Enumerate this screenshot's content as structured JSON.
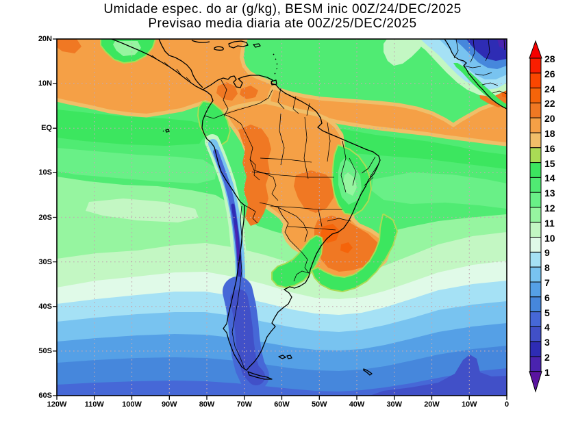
{
  "title": {
    "line1": "Umidade espec. do ar (g/kg), BESM inic 00Z/24/DEC/2025",
    "line2": "Previsao media diaria ate 00Z/25/DEC/2025"
  },
  "axes": {
    "lat_labels": [
      "20N",
      "10N",
      "EQ",
      "10S",
      "20S",
      "30S",
      "40S",
      "50S",
      "60S"
    ],
    "lon_labels": [
      "120W",
      "110W",
      "100W",
      "90W",
      "80W",
      "70W",
      "60W",
      "50W",
      "40W",
      "30W",
      "20W",
      "10W",
      "0"
    ]
  },
  "colorbar": {
    "boundary_values": [
      "28",
      "26",
      "24",
      "22",
      "20",
      "18",
      "16",
      "15",
      "14",
      "13",
      "12",
      "11",
      "10",
      "9",
      "8",
      "7",
      "6",
      "5",
      "4",
      "3",
      "2",
      "1"
    ],
    "bands_top_to_bottom": [
      "26-28",
      "24-26",
      "22-24",
      "20-22",
      "18-20",
      "16-18",
      "15-16",
      "14-15",
      "13-14",
      "12-13",
      "11-12",
      "10-11",
      "9-10",
      "8-9",
      "7-8",
      "6-7",
      "5-6",
      "4-5",
      "3-4",
      "2-3",
      "1-2"
    ],
    "top_arrow_band": ">28",
    "bottom_arrow_band": "<1"
  },
  "palette": {
    ">28": "#F50000",
    "26-28": "#FA1E00",
    "24-26": "#FA4600",
    "22-24": "#F5640A",
    "20-22": "#F07823",
    "18-20": "#F5A046",
    "16-18": "#F0BE69",
    "15-16": "#AADC55",
    "14-15": "#3CE65F",
    "13-14": "#50EB73",
    "12-13": "#69F087",
    "11-12": "#96F5A0",
    "10-11": "#C3F7C3",
    "9-10": "#E0FAE8",
    "8-9": "#A5E1F5",
    "7-8": "#78C3F0",
    "6-7": "#55A0E6",
    "5-6": "#4687DC",
    "4-5": "#4668D7",
    "3-4": "#4150C8",
    "2-3": "#2E2CB4",
    "1-2": "#4A23AF",
    "<1": "#5A14A0"
  },
  "map_style": {
    "grid_dot_color": "#C2A9B2",
    "coastline_color": "#000000",
    "frame_color": "#000000"
  }
}
